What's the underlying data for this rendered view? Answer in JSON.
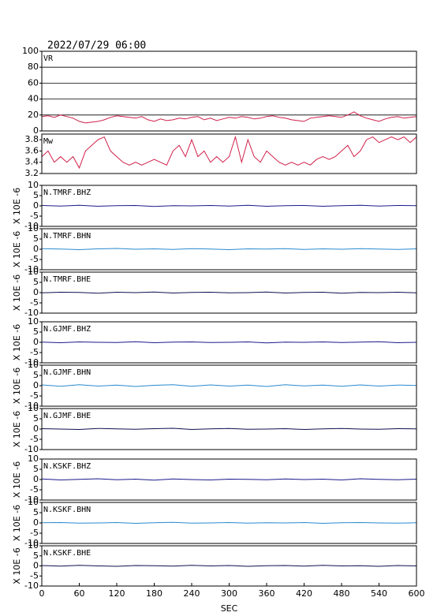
{
  "title": "2022/07/29 06:00",
  "chart_data": [
    {
      "type": "line",
      "title": "VR",
      "grid": true,
      "xlim": [
        0,
        600
      ],
      "ylim": [
        0,
        100
      ],
      "yticks": [
        0,
        20,
        40,
        60,
        80,
        100
      ],
      "x": [
        0,
        10,
        20,
        30,
        40,
        50,
        60,
        70,
        80,
        90,
        100,
        110,
        120,
        130,
        140,
        150,
        160,
        170,
        180,
        190,
        200,
        210,
        220,
        230,
        240,
        250,
        260,
        270,
        280,
        290,
        300,
        310,
        320,
        330,
        340,
        350,
        360,
        370,
        380,
        390,
        400,
        410,
        420,
        430,
        440,
        450,
        460,
        470,
        480,
        490,
        500,
        510,
        520,
        530,
        540,
        550,
        560,
        570,
        580,
        590,
        600
      ],
      "series": [
        {
          "color": "#d0204a",
          "values": [
            18,
            19,
            17,
            20,
            18,
            16,
            12,
            10,
            11,
            12,
            14,
            17,
            19,
            18,
            17,
            16,
            18,
            14,
            12,
            15,
            13,
            14,
            16,
            15,
            17,
            18,
            14,
            16,
            13,
            15,
            17,
            16,
            18,
            17,
            15,
            16,
            18,
            19,
            17,
            16,
            14,
            13,
            12,
            16,
            17,
            18,
            19,
            18,
            17,
            20,
            24,
            19,
            16,
            14,
            12,
            15,
            17,
            18,
            16,
            17,
            18
          ]
        }
      ]
    },
    {
      "type": "line",
      "title": "Mw",
      "grid": false,
      "xlim": [
        0,
        600
      ],
      "ylim": [
        3.2,
        3.9
      ],
      "yticks": [
        3.2,
        3.4,
        3.6,
        3.8
      ],
      "x": [
        0,
        10,
        20,
        30,
        40,
        50,
        60,
        70,
        80,
        90,
        100,
        110,
        120,
        130,
        140,
        150,
        160,
        170,
        180,
        190,
        200,
        210,
        220,
        230,
        240,
        250,
        260,
        270,
        280,
        290,
        300,
        310,
        320,
        330,
        340,
        350,
        360,
        370,
        380,
        390,
        400,
        410,
        420,
        430,
        440,
        450,
        460,
        470,
        480,
        490,
        500,
        510,
        520,
        530,
        540,
        550,
        560,
        570,
        580,
        590,
        600
      ],
      "series": [
        {
          "color": "#d0204a",
          "values": [
            3.5,
            3.6,
            3.4,
            3.5,
            3.4,
            3.5,
            3.3,
            3.6,
            3.7,
            3.8,
            3.85,
            3.6,
            3.5,
            3.4,
            3.35,
            3.4,
            3.35,
            3.4,
            3.45,
            3.4,
            3.35,
            3.6,
            3.7,
            3.5,
            3.8,
            3.5,
            3.6,
            3.4,
            3.5,
            3.4,
            3.5,
            3.85,
            3.4,
            3.8,
            3.5,
            3.4,
            3.6,
            3.5,
            3.4,
            3.35,
            3.4,
            3.35,
            3.4,
            3.35,
            3.45,
            3.5,
            3.45,
            3.5,
            3.6,
            3.7,
            3.5,
            3.6,
            3.8,
            3.85,
            3.75,
            3.8,
            3.85,
            3.8,
            3.85,
            3.75,
            3.85
          ]
        }
      ]
    },
    {
      "type": "line",
      "title": "N.TMRF.BHZ",
      "ylabel": "X 10E -6",
      "xlim": [
        0,
        600
      ],
      "ylim": [
        -10,
        10
      ],
      "yticks": [
        -10,
        -5,
        0,
        5,
        10
      ],
      "x": [
        0,
        30,
        60,
        90,
        120,
        150,
        180,
        210,
        240,
        270,
        300,
        330,
        360,
        390,
        420,
        450,
        480,
        510,
        540,
        570,
        600
      ],
      "series": [
        {
          "color": "#1a1a8c",
          "values": [
            0.2,
            -0.1,
            0.3,
            -0.2,
            0.1,
            0.2,
            -0.3,
            0.1,
            0.0,
            0.2,
            -0.1,
            0.3,
            -0.2,
            0.1,
            0.2,
            -0.2,
            0.1,
            0.3,
            -0.1,
            0.2,
            0.1
          ]
        }
      ]
    },
    {
      "type": "line",
      "title": "N.TMRF.BHN",
      "ylabel": "X 10E -6",
      "xlim": [
        0,
        600
      ],
      "ylim": [
        -10,
        10
      ],
      "yticks": [
        -10,
        -5,
        0,
        5,
        10
      ],
      "x": [
        0,
        30,
        60,
        90,
        120,
        150,
        180,
        210,
        240,
        270,
        300,
        330,
        360,
        390,
        420,
        450,
        480,
        510,
        540,
        570,
        600
      ],
      "series": [
        {
          "color": "#2a8ad0",
          "values": [
            0.3,
            0.1,
            -0.2,
            0.2,
            0.4,
            0.0,
            0.2,
            -0.1,
            0.3,
            0.1,
            -0.2,
            0.2,
            0.1,
            0.3,
            -0.1,
            0.2,
            0.0,
            0.3,
            0.1,
            -0.1,
            0.2
          ]
        }
      ]
    },
    {
      "type": "line",
      "title": "N.TMRF.BHE",
      "ylabel": "X 10E -6",
      "xlim": [
        0,
        600
      ],
      "ylim": [
        -10,
        10
      ],
      "yticks": [
        -10,
        -5,
        0,
        5,
        10
      ],
      "x": [
        0,
        30,
        60,
        90,
        120,
        150,
        180,
        210,
        240,
        270,
        300,
        330,
        360,
        390,
        420,
        450,
        480,
        510,
        540,
        570,
        600
      ],
      "series": [
        {
          "color": "#101050",
          "values": [
            -0.1,
            0.2,
            0.1,
            -0.3,
            0.2,
            0.0,
            0.3,
            -0.2,
            0.1,
            0.2,
            -0.1,
            0.0,
            0.3,
            -0.2,
            0.1,
            0.2,
            -0.3,
            0.1,
            0.0,
            0.2,
            -0.1
          ]
        }
      ]
    },
    {
      "type": "line",
      "title": "N.GJMF.BHZ",
      "ylabel": "X 10E -6",
      "xlim": [
        0,
        600
      ],
      "ylim": [
        -10,
        10
      ],
      "yticks": [
        -10,
        -5,
        0,
        5,
        10
      ],
      "x": [
        0,
        30,
        60,
        90,
        120,
        150,
        180,
        210,
        240,
        270,
        300,
        330,
        360,
        390,
        420,
        450,
        480,
        510,
        540,
        570,
        600
      ],
      "series": [
        {
          "color": "#1a1a8c",
          "values": [
            0.1,
            -0.2,
            0.2,
            0.0,
            -0.1,
            0.3,
            -0.2,
            0.1,
            0.2,
            -0.1,
            0.0,
            0.2,
            -0.3,
            0.1,
            0.0,
            0.2,
            -0.1,
            0.1,
            0.3,
            -0.2,
            0.0
          ]
        }
      ]
    },
    {
      "type": "line",
      "title": "N.GJMF.BHN",
      "ylabel": "X 10E -6",
      "xlim": [
        0,
        600
      ],
      "ylim": [
        -10,
        10
      ],
      "yticks": [
        -10,
        -5,
        0,
        5,
        10
      ],
      "x": [
        0,
        30,
        60,
        90,
        120,
        150,
        180,
        210,
        240,
        270,
        300,
        330,
        360,
        390,
        420,
        450,
        480,
        510,
        540,
        570,
        600
      ],
      "series": [
        {
          "color": "#2a8ad0",
          "values": [
            0.4,
            -0.3,
            0.5,
            -0.2,
            0.3,
            -0.4,
            0.2,
            0.5,
            -0.3,
            0.4,
            -0.2,
            0.3,
            -0.4,
            0.5,
            -0.1,
            0.3,
            -0.3,
            0.4,
            -0.2,
            0.3,
            0.1
          ]
        }
      ]
    },
    {
      "type": "line",
      "title": "N.GJMF.BHE",
      "ylabel": "X 10E -6",
      "xlim": [
        0,
        600
      ],
      "ylim": [
        -10,
        10
      ],
      "yticks": [
        -10,
        -5,
        0,
        5,
        10
      ],
      "x": [
        0,
        30,
        60,
        90,
        120,
        150,
        180,
        210,
        240,
        270,
        300,
        330,
        360,
        390,
        420,
        450,
        480,
        510,
        540,
        570,
        600
      ],
      "series": [
        {
          "color": "#101050",
          "values": [
            0.2,
            0.0,
            -0.2,
            0.3,
            0.1,
            -0.1,
            0.2,
            0.4,
            -0.2,
            0.1,
            0.3,
            -0.1,
            0.0,
            0.2,
            -0.2,
            0.1,
            0.3,
            0.0,
            -0.1,
            0.2,
            0.1
          ]
        }
      ]
    },
    {
      "type": "line",
      "title": "N.KSKF.BHZ",
      "ylabel": "X 10E -6",
      "xlim": [
        0,
        600
      ],
      "ylim": [
        -10,
        10
      ],
      "yticks": [
        -10,
        -5,
        0,
        5,
        10
      ],
      "x": [
        0,
        30,
        60,
        90,
        120,
        150,
        180,
        210,
        240,
        270,
        300,
        330,
        360,
        390,
        420,
        450,
        480,
        510,
        540,
        570,
        600
      ],
      "series": [
        {
          "color": "#1a1a8c",
          "values": [
            0.3,
            -0.2,
            0.1,
            0.4,
            -0.1,
            0.2,
            -0.3,
            0.3,
            0.0,
            -0.2,
            0.2,
            0.1,
            -0.1,
            0.3,
            0.0,
            0.2,
            -0.2,
            0.4,
            0.1,
            -0.1,
            0.2
          ]
        }
      ]
    },
    {
      "type": "line",
      "title": "N.KSKF.BHN",
      "ylabel": "X 10E -6",
      "xlim": [
        0,
        600
      ],
      "ylim": [
        -10,
        10
      ],
      "yticks": [
        -10,
        -5,
        0,
        5,
        10
      ],
      "x": [
        0,
        30,
        60,
        90,
        120,
        150,
        180,
        210,
        240,
        270,
        300,
        330,
        360,
        390,
        420,
        450,
        480,
        510,
        540,
        570,
        600
      ],
      "series": [
        {
          "color": "#2a8ad0",
          "values": [
            0.1,
            0.2,
            -0.1,
            0.0,
            0.2,
            -0.2,
            0.1,
            0.3,
            -0.1,
            0.0,
            0.2,
            -0.1,
            0.1,
            0.0,
            0.2,
            -0.2,
            0.1,
            0.2,
            0.0,
            -0.1,
            0.1
          ]
        }
      ]
    },
    {
      "type": "line",
      "title": "N.KSKF.BHE",
      "ylabel": "X 10E -6",
      "xlabel": "SEC",
      "xlim": [
        0,
        600
      ],
      "ylim": [
        -10,
        10
      ],
      "yticks": [
        -10,
        -5,
        0,
        5,
        10
      ],
      "xticks": [
        0,
        60,
        120,
        180,
        240,
        300,
        360,
        420,
        480,
        540,
        600
      ],
      "x": [
        0,
        30,
        60,
        90,
        120,
        150,
        180,
        210,
        240,
        270,
        300,
        330,
        360,
        390,
        420,
        450,
        480,
        510,
        540,
        570,
        600
      ],
      "series": [
        {
          "color": "#101050",
          "values": [
            0.2,
            -0.1,
            0.3,
            0.0,
            -0.2,
            0.2,
            0.1,
            -0.1,
            0.3,
            0.0,
            0.2,
            -0.2,
            0.1,
            0.2,
            -0.1,
            0.3,
            0.0,
            0.1,
            -0.2,
            0.2,
            0.0
          ]
        }
      ]
    }
  ]
}
